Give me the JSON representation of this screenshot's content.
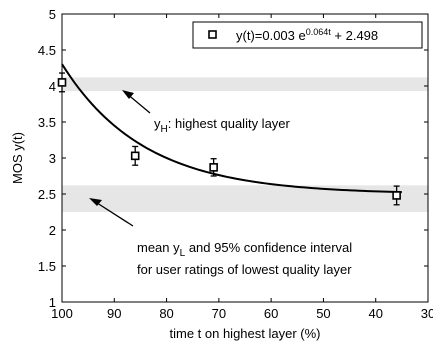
{
  "chart_data": {
    "type": "scatter",
    "xlabel": "time t on highest layer (%)",
    "ylabel": "MOS y(t)",
    "xlim": [
      100,
      30
    ],
    "ylim": [
      1,
      5
    ],
    "x_ticks": [
      "100",
      "90",
      "80",
      "70",
      "60",
      "50",
      "40",
      "30"
    ],
    "y_ticks": [
      "1",
      "1.5",
      "2",
      "2.5",
      "3",
      "3.5",
      "4",
      "4.5",
      "5"
    ],
    "grid": false,
    "legend": {
      "position": "top-right",
      "label_prefix": "y(t)=0.003 e",
      "label_exponent": "0.064t",
      "label_suffix": " + 2.498"
    },
    "series": [
      {
        "marker": "square",
        "x": [
          100,
          86,
          71,
          36
        ],
        "y": [
          4.05,
          3.03,
          2.87,
          2.48
        ],
        "err_low": [
          3.92,
          2.9,
          2.75,
          2.35
        ],
        "err_high": [
          4.18,
          3.16,
          2.99,
          2.61
        ]
      }
    ],
    "fit": {
      "a": 0.003,
      "b": 0.064,
      "c": 2.498,
      "x_from": 100,
      "x_to": 35
    },
    "bands": [
      {
        "y_low": 3.93,
        "y_high": 4.12
      },
      {
        "y_low": 2.25,
        "y_high": 2.62
      }
    ],
    "annotations": {
      "high": {
        "prefix": "y",
        "sub": "H",
        "suffix": ": highest quality layer"
      },
      "low_line1": {
        "prefix": "mean y",
        "sub": "L",
        "suffix": " and 95% confidence interval"
      },
      "low_line2": "for user ratings of lowest quality layer"
    }
  }
}
